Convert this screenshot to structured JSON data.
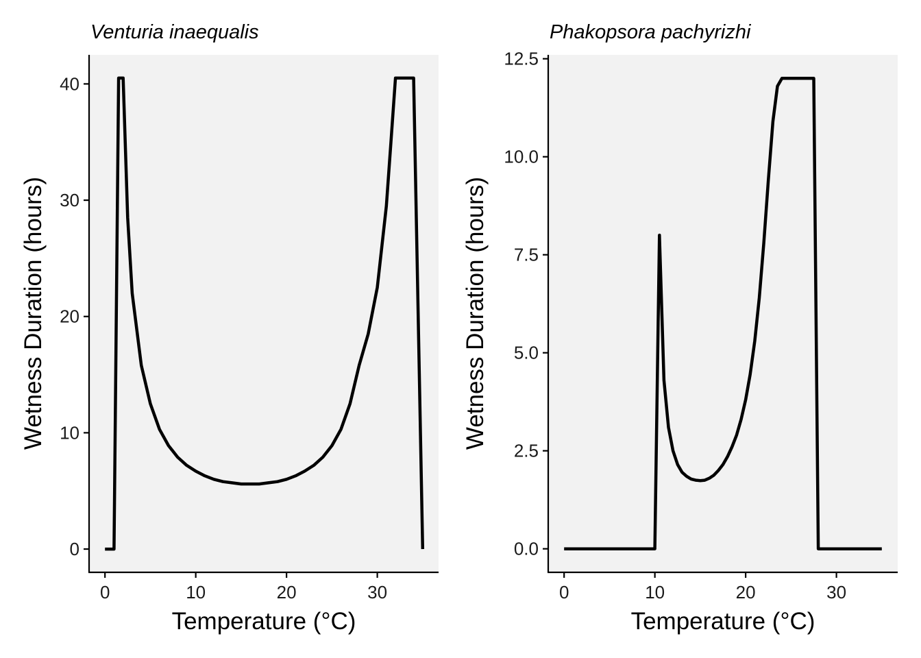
{
  "chart_data": [
    {
      "type": "line",
      "title": "Venturia inaequalis",
      "xlabel": "Temperature (°C)",
      "ylabel": "Wetness Duration (hours)",
      "xlim": [
        -1.75,
        36.75
      ],
      "ylim": [
        -2,
        42.5
      ],
      "xticks": [
        0,
        10,
        20,
        30
      ],
      "yticks": [
        0,
        10,
        20,
        30,
        40
      ],
      "ytick_labels": [
        "0",
        "10",
        "20",
        "30",
        "40"
      ],
      "grid": false,
      "series": [
        {
          "color": "#000000",
          "x": [
            0,
            1,
            1.5,
            2,
            2.5,
            3,
            4,
            5,
            6,
            7,
            8,
            9,
            10,
            11,
            12,
            13,
            14,
            15,
            16,
            17,
            18,
            19,
            20,
            21,
            22,
            23,
            24,
            25,
            26,
            27,
            28,
            29,
            30,
            31,
            31.5,
            32,
            32.5,
            33,
            34,
            35
          ],
          "y": [
            0,
            0,
            40.5,
            40.5,
            28.5,
            22,
            15.8,
            12.5,
            10.3,
            8.9,
            7.9,
            7.2,
            6.7,
            6.3,
            6.0,
            5.8,
            5.7,
            5.6,
            5.6,
            5.6,
            5.7,
            5.8,
            6.0,
            6.3,
            6.7,
            7.2,
            7.9,
            8.9,
            10.3,
            12.5,
            15.8,
            18.5,
            22.5,
            29.5,
            35.0,
            40.5,
            40.5,
            40.5,
            40.5,
            0
          ]
        }
      ]
    },
    {
      "type": "line",
      "title": "Phakopsora pachyrizhi",
      "xlabel": "Temperature (°C)",
      "ylabel": "Wetness Duration (hours)",
      "xlim": [
        -1.75,
        36.75
      ],
      "ylim": [
        -0.6,
        12.6
      ],
      "xticks": [
        0,
        10,
        20,
        30
      ],
      "yticks": [
        0,
        2.5,
        5,
        7.5,
        10,
        12.5
      ],
      "ytick_labels": [
        "0.0",
        "2.5",
        "5.0",
        "7.5",
        "10.0",
        "12.5"
      ],
      "grid": false,
      "series": [
        {
          "color": "#000000",
          "x": [
            0,
            10,
            10.5,
            11,
            11.5,
            12,
            12.5,
            13,
            13.5,
            14,
            14.5,
            15,
            15.5,
            16,
            16.5,
            17,
            17.5,
            18,
            18.5,
            19,
            19.5,
            20,
            20.5,
            21,
            21.5,
            22,
            22.5,
            23,
            23.5,
            24,
            25,
            26,
            27,
            27.5,
            28,
            29,
            30,
            31,
            32,
            33,
            34,
            35
          ],
          "y": [
            0,
            0,
            8.0,
            4.3,
            3.1,
            2.5,
            2.15,
            1.95,
            1.85,
            1.78,
            1.75,
            1.74,
            1.75,
            1.8,
            1.88,
            2.0,
            2.15,
            2.35,
            2.6,
            2.9,
            3.3,
            3.8,
            4.45,
            5.3,
            6.4,
            7.8,
            9.4,
            10.9,
            11.8,
            12.0,
            12.0,
            12.0,
            12.0,
            12.0,
            0,
            0,
            0,
            0,
            0,
            0,
            0,
            0
          ]
        }
      ]
    }
  ]
}
